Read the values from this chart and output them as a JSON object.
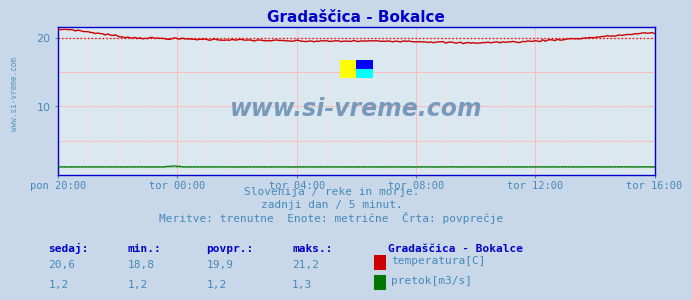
{
  "title": "Gradaščica - Bokalce",
  "bg_color": "#c8d8e8",
  "plot_bg_color": "#dce8f0",
  "grid_color": "#ffbbbb",
  "grid_minor_color": "#ffdddd",
  "title_color": "#0000cc",
  "text_color": "#4488bb",
  "xlabel_color": "#4488bb",
  "x_labels": [
    "pon 20:00",
    "tor 00:00",
    "tor 04:00",
    "tor 08:00",
    "tor 12:00",
    "tor 16:00"
  ],
  "x_ticks_pos": [
    0,
    48,
    96,
    144,
    192,
    240
  ],
  "x_total": 240,
  "ylim": [
    0,
    21.5
  ],
  "yticks": [
    10,
    20
  ],
  "avg_temp": 19.9,
  "avg_pretok": 1.2,
  "temp_color": "#cc0000",
  "pretok_color": "#007700",
  "watermark_text": "www.si-vreme.com",
  "watermark_color": "#7799bb",
  "side_text": "www.si-vreme.com",
  "subtitle1": "Slovenija / reke in morje.",
  "subtitle2": "zadnji dan / 5 minut.",
  "subtitle3": "Meritve: trenutne  Enote: metrične  Črta: povprečje",
  "legend_station": "Gradaščica - Bokalce",
  "legend_temp_label": "temperatura[C]",
  "legend_pretok_label": "pretok[m3/s]",
  "table_headers": [
    "sedaj:",
    "min.:",
    "povpr.:",
    "maks.:"
  ],
  "table_temp": [
    "20,6",
    "18,8",
    "19,9",
    "21,2"
  ],
  "table_pretok": [
    "1,2",
    "1,2",
    "1,2",
    "1,3"
  ],
  "spine_color": "#0000cc"
}
